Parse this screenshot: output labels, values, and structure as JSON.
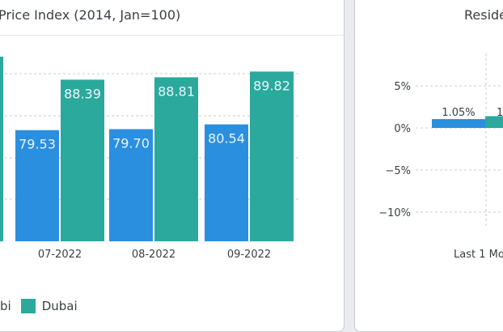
{
  "colors": {
    "abu_dhabi": "#2b8fe0",
    "dubai": "#2aa99c",
    "grid": "#c8ccd1",
    "axis_text": "#3a3f45"
  },
  "left_panel": {
    "title": "Price Index (2014, Jan=100)"
  },
  "right_panel": {
    "title": "Reside"
  },
  "chart_data": [
    {
      "type": "bar",
      "title": "Price Index (2014, Jan=100)",
      "categories": [
        "07-2022",
        "08-2022",
        "09-2022"
      ],
      "series": [
        {
          "name": "",
          "values": [
            79.53,
            79.7,
            80.54
          ]
        },
        {
          "name": "Dubai",
          "values": [
            88.39,
            88.81,
            89.82
          ]
        }
      ],
      "legend_entries": [
        "bi",
        "Dubai"
      ],
      "ylim": [
        60,
        93
      ],
      "grid": true,
      "legend": "bottom"
    },
    {
      "type": "bar",
      "title": "Reside",
      "categories": [
        "Last 1 Mo"
      ],
      "series": [
        {
          "name": "",
          "values": [
            1.05
          ]
        },
        {
          "name": "",
          "values": [
            1.4
          ]
        }
      ],
      "data_labels": [
        "1.05%",
        "1"
      ],
      "yticks": [
        "5%",
        "0%",
        "−5%",
        "−10%"
      ],
      "ytick_values": [
        5,
        0,
        -5,
        -10
      ],
      "ylim": [
        -12,
        8
      ],
      "grid": true
    }
  ]
}
